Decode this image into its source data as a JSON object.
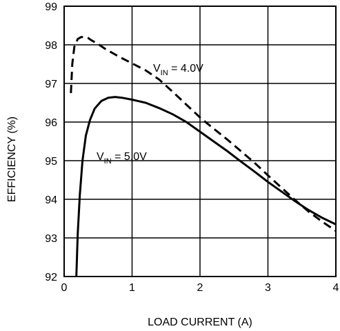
{
  "chart_data": {
    "type": "line",
    "xlabel": "LOAD CURRENT (A)",
    "ylabel": "EFFICIENCY (%)",
    "xlim": [
      0,
      4
    ],
    "ylim": [
      92,
      99
    ],
    "xticks": [
      "0",
      "1",
      "2",
      "3",
      "4"
    ],
    "yticks": [
      "92",
      "93",
      "94",
      "95",
      "96",
      "97",
      "98",
      "99"
    ],
    "grid": true,
    "legend": "none",
    "series": [
      {
        "label_main": "V",
        "label_sub": "IN",
        "label_rest": " = 4.0V",
        "style": "dashed",
        "color": "#000000",
        "x": [
          0.1,
          0.12,
          0.15,
          0.2,
          0.25,
          0.3,
          0.35,
          0.4,
          0.5,
          0.6,
          0.8,
          1.0,
          1.2,
          1.4,
          1.6,
          1.8,
          2.0,
          2.2,
          2.4,
          2.6,
          2.8,
          3.0,
          3.2,
          3.4,
          3.6,
          3.8,
          4.0
        ],
        "y": [
          96.75,
          97.5,
          97.95,
          98.15,
          98.2,
          98.2,
          98.18,
          98.12,
          98.02,
          97.9,
          97.7,
          97.52,
          97.34,
          97.1,
          96.78,
          96.45,
          96.12,
          95.83,
          95.55,
          95.25,
          94.95,
          94.62,
          94.3,
          93.98,
          93.68,
          93.42,
          93.18
        ]
      },
      {
        "label_main": "V",
        "label_sub": "IN",
        "label_rest": " = 5.0V",
        "style": "solid",
        "color": "#000000",
        "x": [
          0.18,
          0.2,
          0.23,
          0.27,
          0.32,
          0.38,
          0.45,
          0.55,
          0.65,
          0.75,
          0.85,
          1.0,
          1.2,
          1.4,
          1.6,
          1.8,
          2.0,
          2.2,
          2.4,
          2.6,
          2.8,
          3.0,
          3.2,
          3.4,
          3.6,
          3.8,
          4.0
        ],
        "y": [
          92.0,
          93.1,
          94.1,
          95.0,
          95.65,
          96.05,
          96.35,
          96.55,
          96.63,
          96.65,
          96.63,
          96.58,
          96.5,
          96.36,
          96.2,
          96.0,
          95.75,
          95.5,
          95.25,
          94.98,
          94.72,
          94.45,
          94.2,
          93.95,
          93.72,
          93.52,
          93.35
        ]
      }
    ]
  }
}
